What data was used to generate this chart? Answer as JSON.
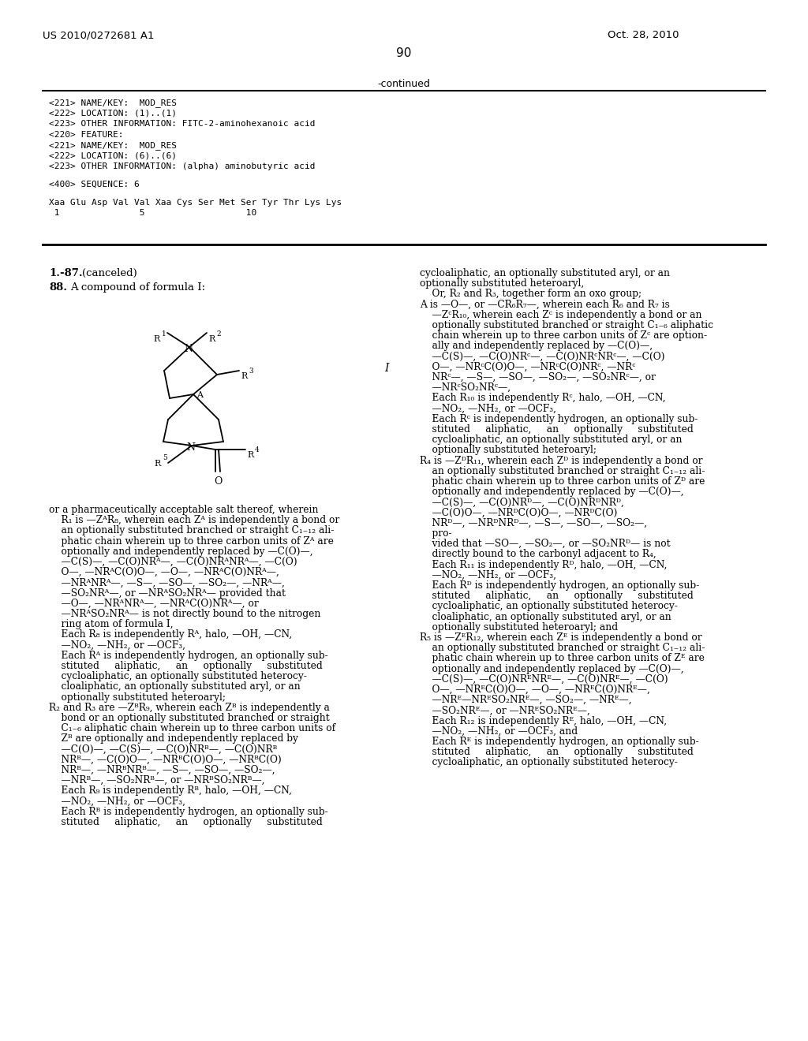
{
  "bg_color": "#ffffff",
  "header_left": "US 2010/0272681 A1",
  "header_right": "Oct. 28, 2010",
  "page_number": "90",
  "continued_text": "-continued",
  "seq_lines": [
    "<221> NAME/KEY:  MOD_RES",
    "<222> LOCATION: (1)..(1)",
    "<223> OTHER INFORMATION: FITC-2-aminohexanoic acid",
    "<220> FEATURE:",
    "<221> NAME/KEY:  MOD_RES",
    "<222> LOCATION: (6)..(6)",
    "<223> OTHER INFORMATION: (alpha) aminobutyric acid",
    "",
    "<400> SEQUENCE: 6",
    "",
    "Xaa Glu Asp Val Val Xaa Cys Ser Met Ser Tyr Thr Lys Lys",
    " 1               5                   10"
  ],
  "left_col": [
    "or a pharmaceutically acceptable salt thereof, wherein",
    "    R₁ is —ZᴬR₈, wherein each Zᴬ is independently a bond or",
    "    an optionally substituted branched or straight C₁₋₁₂ ali-",
    "    phatic chain wherein up to three carbon units of Zᴬ are",
    "    optionally and independently replaced by —C(O)—,",
    "    —C(S)—, —C(O)NRᴬ—, —C(O)NRᴬNRᴬ—, —C(O)",
    "    O—, —NRᴬC(O)O—, —O—, —NRᴬC(O)NRᴬ—,",
    "    —NRᴬNRᴬ—, —S—, —SO—, —SO₂—, —NRᴬ—,",
    "    —SO₂NRᴬ—, or —NRᴬSO₂NRᴬ— provided that",
    "    —O—, —NRᴬNRᴬ—, —NRᴬC(O)NRᴬ—, or",
    "    —NRᴬSO₂NRᴬ— is not directly bound to the nitrogen",
    "    ring atom of formula I,",
    "    Each R₈ is independently Rᴬ, halo, —OH, —CN,",
    "    —NO₂, —NH₂, or —OCF₃,",
    "    Each Rᴬ is independently hydrogen, an optionally sub-",
    "    stituted     aliphatic,     an     optionally     substituted",
    "    cycloaliphatic, an optionally substituted heterocy-",
    "    cloaliphatic, an optionally substituted aryl, or an",
    "    optionally substituted heteroaryl;",
    "R₂ and R₃ are —ZᴮR₉, wherein each Zᴮ is independently a",
    "    bond or an optionally substituted branched or straight",
    "    C₁₋₆ aliphatic chain wherein up to three carbon units of",
    "    Zᴮ are optionally and independently replaced by",
    "    —C(O)—, —C(S)—, —C(O)NRᴮ—, —C(O)NRᴮ",
    "    NRᴮ—, —C(O)O—, —NRᴮC(O)O—, —NRᴮC(O)",
    "    NRᴮ—, —NRᴮNRᴮ—, —S—, —SO—, —SO₂—,",
    "    —NRᴮ—, —SO₂NRᴮ—, or —NRᴮSO₂NRᴮ—,",
    "    Each R₉ is independently Rᴮ, halo, —OH, —CN,",
    "    —NO₂, —NH₂, or —OCF₃,",
    "    Each Rᴮ is independently hydrogen, an optionally sub-",
    "    stituted     aliphatic,     an     optionally     substituted"
  ],
  "right_col": [
    "cycloaliphatic, an optionally substituted aryl, or an",
    "optionally substituted heteroaryl,",
    "    Or, R₂ and R₃, together form an oxo group;",
    "A is —O—, or —CR₆R₇—, wherein each R₆ and R₇ is",
    "    —ZᶜR₁₀, wherein each Zᶜ is independently a bond or an",
    "    optionally substituted branched or straight C₁₋₆ aliphatic",
    "    chain wherein up to three carbon units of Zᶜ are option-",
    "    ally and independently replaced by —C(O)—,",
    "    —C(S)—, —C(O)NRᶜ—, —C(O)NRᶜNRᶜ—, —C(O)",
    "    O—, —NRᶜC(O)O—, —NRᶜC(O)NRᶜ, —NRᶜ",
    "    NRᶜ—, —S—, —SO—, —SO₂—, —SO₂NRᶜ—, or",
    "    —NRᶜSO₂NRᶜ—,",
    "    Each R₁₀ is independently Rᶜ, halo, —OH, —CN,",
    "    —NO₂, —NH₂, or —OCF₃,",
    "    Each Rᶜ is independently hydrogen, an optionally sub-",
    "    stituted     aliphatic,     an     optionally     substituted",
    "    cycloaliphatic, an optionally substituted aryl, or an",
    "    optionally substituted heteroaryl;",
    "R₄ is —ZᴰR₁₁, wherein each Zᴰ is independently a bond or",
    "    an optionally substituted branched or straight C₁₋₁₂ ali-",
    "    phatic chain wherein up to three carbon units of Zᴰ are",
    "    optionally and independently replaced by —C(O)—,",
    "    —C(S)—, —C(O)NRᴰ—, —C(O)NRᴰNRᴰ,",
    "    —C(O)O—, —NRᴰC(O)O—, —NRᴰC(O)",
    "    NRᴰ—, —NRᴰNRᴰ—, —S—, —SO—, —SO₂—,",
    "    pro-",
    "    vided that —SO—, —SO₂—, or —SO₂NRᴰ— is not",
    "    directly bound to the carbonyl adjacent to R₄,",
    "    Each R₁₁ is independently Rᴰ, halo, —OH, —CN,",
    "    —NO₂, —NH₂, or —OCF₃,",
    "    Each Rᴰ is independently hydrogen, an optionally sub-",
    "    stituted     aliphatic,     an     optionally     substituted",
    "    cycloaliphatic, an optionally substituted heterocy-",
    "    cloaliphatic, an optionally substituted aryl, or an",
    "    optionally substituted heteroaryl; and",
    "R₅ is —ZᴱR₁₂, wherein each Zᴱ is independently a bond or",
    "    an optionally substituted branched or straight C₁₋₁₂ ali-",
    "    phatic chain wherein up to three carbon units of Zᴱ are",
    "    optionally and independently replaced by —C(O)—,",
    "    —C(S)—, —C(O)NRᴱNRᴱ—, —C(O)NRᴱ—, —C(O)",
    "    O—, —NRᴱC(O)O—, —O—, —NRᴱC(O)NRᴱ—,",
    "    —NRᴱ—NRᴱSO₂NRᴱ—, —SO₂—, —NRᴱ—,",
    "    —SO₂NRᴱ—, or —NRᴱSO₂NRᴱ—,",
    "    Each R₁₂ is independently Rᴱ, halo, —OH, —CN,",
    "    —NO₂, —NH₂, or —OCF₃, and",
    "    Each Rᴱ is independently hydrogen, an optionally sub-",
    "    stituted     aliphatic,     an     optionally     substituted",
    "    cycloaliphatic, an optionally substituted heterocy-"
  ]
}
